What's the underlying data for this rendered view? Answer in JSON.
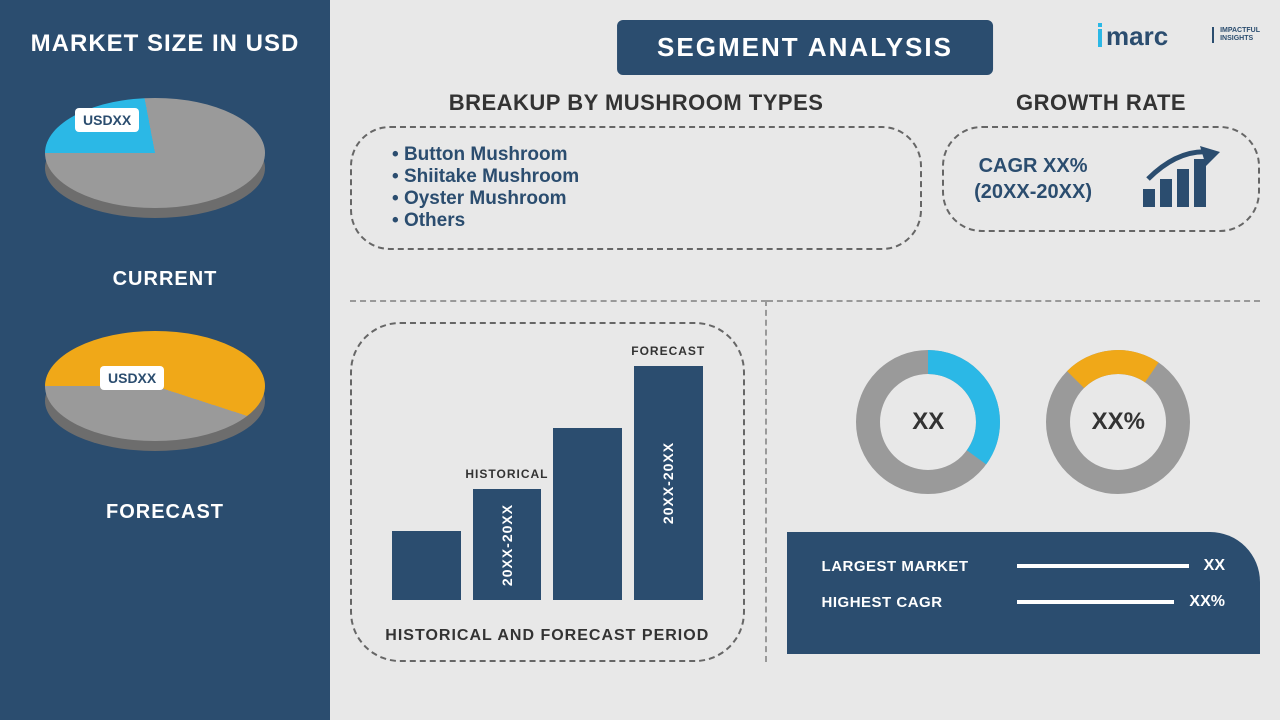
{
  "colors": {
    "primary": "#2b4d6f",
    "accent_blue": "#2bb8e6",
    "accent_yellow": "#f0a818",
    "grey": "#9a9a9a",
    "dark_grey": "#878787"
  },
  "logo": {
    "brand": "imarc",
    "tagline1": "IMPACTFUL",
    "tagline2": "INSIGHTS"
  },
  "sidebar": {
    "title": "MARKET SIZE IN USD",
    "current": {
      "label": "CURRENT",
      "badge": "USDXX",
      "slice_pct": 22,
      "slice_color": "#2bb8e6",
      "base_color": "#9a9a9a"
    },
    "forecast": {
      "label": "FORECAST",
      "badge": "USDXX",
      "slice_pct": 55,
      "slice_color": "#f0a818",
      "base_color": "#9a9a9a"
    }
  },
  "header": "SEGMENT ANALYSIS",
  "breakup": {
    "title": "BREAKUP BY MUSHROOM TYPES",
    "items": [
      "Button Mushroom",
      "Shiitake Mushroom",
      "Oyster Mushroom",
      "Others"
    ]
  },
  "growth": {
    "title": "GROWTH RATE",
    "line1": "CAGR XX%",
    "line2": "(20XX-20XX)",
    "icon_color": "#2b4d6f"
  },
  "bar_chart": {
    "caption": "HISTORICAL AND FORECAST PERIOD",
    "bars": [
      {
        "height_pct": 28,
        "top_label": "",
        "inner_label": ""
      },
      {
        "height_pct": 45,
        "top_label": "HISTORICAL",
        "inner_label": "20XX-20XX"
      },
      {
        "height_pct": 70,
        "top_label": "",
        "inner_label": ""
      },
      {
        "height_pct": 95,
        "top_label": "FORECAST",
        "inner_label": "20XX-20XX"
      }
    ],
    "bar_color": "#2b4d6f"
  },
  "donuts": [
    {
      "center": "XX",
      "pct": 35,
      "ring_color": "#2bb8e6",
      "track_color": "#9a9a9a",
      "thickness": 24
    },
    {
      "center": "XX%",
      "pct": 22,
      "ring_color": "#f0a818",
      "track_color": "#9a9a9a",
      "thickness": 24,
      "start_angle": -45
    }
  ],
  "metrics": [
    {
      "label": "LARGEST MARKET",
      "value": "XX",
      "fill_pct": 92
    },
    {
      "label": "HIGHEST CAGR",
      "value": "XX%",
      "fill_pct": 88
    }
  ]
}
